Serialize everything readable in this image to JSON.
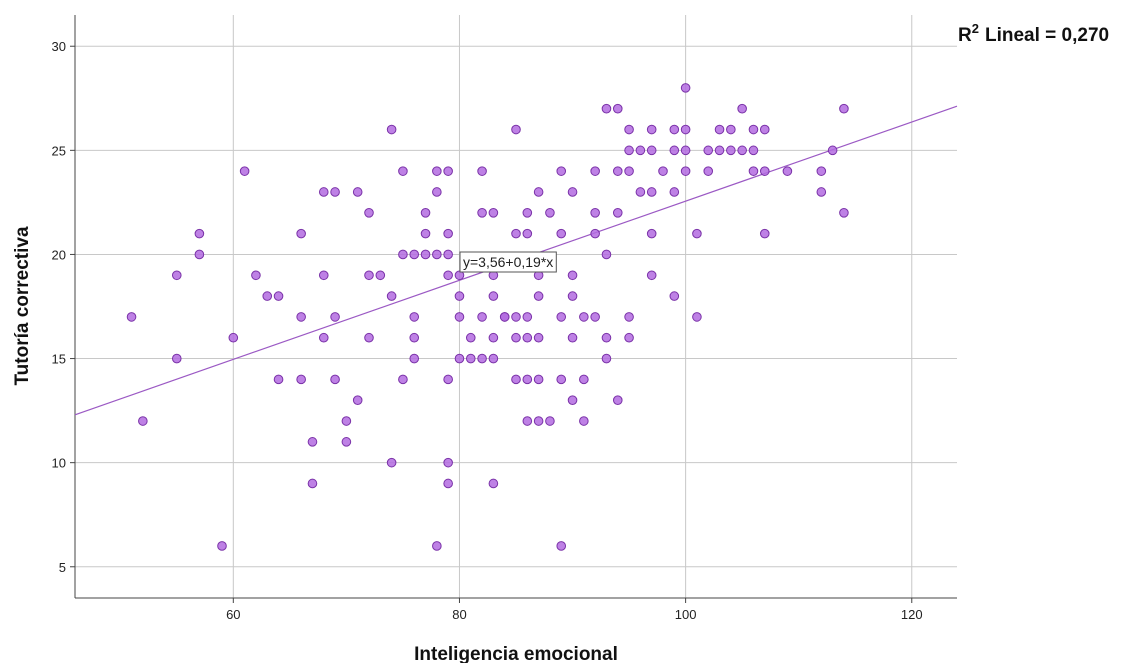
{
  "chart_data": {
    "type": "scatter",
    "title": "",
    "xlabel": "Inteligencia emocional",
    "ylabel": "Tutoría correctiva",
    "xlim": [
      46,
      124
    ],
    "ylim": [
      3.5,
      31.5
    ],
    "x_ticks": [
      60,
      80,
      100,
      120
    ],
    "y_ticks": [
      5,
      10,
      15,
      20,
      25,
      30
    ],
    "grid": true,
    "point_color": "#b36be0",
    "point_edge_color": "#7a32a8",
    "fit_line": {
      "intercept": 3.56,
      "slope": 0.19,
      "color": "#9b59c4",
      "equation_label": "y=3,56+0,19*x",
      "r2_label_prefix": "R",
      "r2_label_sup": "2",
      "r2_label_suffix": "Lineal = 0,270"
    },
    "points": [
      [
        51,
        17
      ],
      [
        52,
        12
      ],
      [
        55,
        19
      ],
      [
        55,
        15
      ],
      [
        57,
        21
      ],
      [
        57,
        20
      ],
      [
        59,
        6
      ],
      [
        60,
        16
      ],
      [
        61,
        24
      ],
      [
        62,
        19
      ],
      [
        63,
        18
      ],
      [
        64,
        18
      ],
      [
        64,
        14
      ],
      [
        66,
        21
      ],
      [
        66,
        17
      ],
      [
        66,
        14
      ],
      [
        67,
        11
      ],
      [
        67,
        9
      ],
      [
        68,
        23
      ],
      [
        68,
        19
      ],
      [
        68,
        16
      ],
      [
        69,
        23
      ],
      [
        69,
        17
      ],
      [
        69,
        14
      ],
      [
        70,
        12
      ],
      [
        70,
        11
      ],
      [
        71,
        23
      ],
      [
        71,
        13
      ],
      [
        72,
        22
      ],
      [
        72,
        19
      ],
      [
        72,
        16
      ],
      [
        73,
        19
      ],
      [
        74,
        26
      ],
      [
        74,
        18
      ],
      [
        74,
        10
      ],
      [
        75,
        24
      ],
      [
        75,
        20
      ],
      [
        75,
        14
      ],
      [
        76,
        20
      ],
      [
        76,
        17
      ],
      [
        76,
        16
      ],
      [
        76,
        15
      ],
      [
        77,
        22
      ],
      [
        77,
        21
      ],
      [
        77,
        20
      ],
      [
        78,
        24
      ],
      [
        78,
        23
      ],
      [
        78,
        20
      ],
      [
        78,
        6
      ],
      [
        79,
        24
      ],
      [
        79,
        21
      ],
      [
        79,
        20
      ],
      [
        79,
        19
      ],
      [
        79,
        14
      ],
      [
        79,
        10
      ],
      [
        79,
        9
      ],
      [
        80,
        19
      ],
      [
        80,
        18
      ],
      [
        80,
        17
      ],
      [
        80,
        15
      ],
      [
        81,
        15
      ],
      [
        81,
        16
      ],
      [
        82,
        24
      ],
      [
        82,
        22
      ],
      [
        82,
        17
      ],
      [
        82,
        15
      ],
      [
        83,
        22
      ],
      [
        83,
        19
      ],
      [
        83,
        18
      ],
      [
        83,
        16
      ],
      [
        83,
        15
      ],
      [
        83,
        9
      ],
      [
        84,
        17
      ],
      [
        84,
        17
      ],
      [
        85,
        26
      ],
      [
        85,
        21
      ],
      [
        85,
        17
      ],
      [
        85,
        16
      ],
      [
        85,
        14
      ],
      [
        86,
        22
      ],
      [
        86,
        21
      ],
      [
        86,
        17
      ],
      [
        86,
        16
      ],
      [
        86,
        14
      ],
      [
        86,
        12
      ],
      [
        87,
        23
      ],
      [
        87,
        19
      ],
      [
        87,
        18
      ],
      [
        87,
        16
      ],
      [
        87,
        14
      ],
      [
        87,
        12
      ],
      [
        88,
        22
      ],
      [
        88,
        12
      ],
      [
        89,
        24
      ],
      [
        89,
        21
      ],
      [
        89,
        17
      ],
      [
        89,
        14
      ],
      [
        89,
        6
      ],
      [
        90,
        23
      ],
      [
        90,
        19
      ],
      [
        90,
        18
      ],
      [
        90,
        16
      ],
      [
        90,
        13
      ],
      [
        91,
        17
      ],
      [
        91,
        14
      ],
      [
        91,
        12
      ],
      [
        92,
        24
      ],
      [
        92,
        22
      ],
      [
        92,
        21
      ],
      [
        92,
        17
      ],
      [
        93,
        27
      ],
      [
        93,
        20
      ],
      [
        93,
        16
      ],
      [
        93,
        15
      ],
      [
        94,
        27
      ],
      [
        94,
        24
      ],
      [
        94,
        22
      ],
      [
        94,
        13
      ],
      [
        95,
        26
      ],
      [
        95,
        25
      ],
      [
        95,
        24
      ],
      [
        95,
        17
      ],
      [
        95,
        16
      ],
      [
        96,
        25
      ],
      [
        96,
        23
      ],
      [
        97,
        26
      ],
      [
        97,
        25
      ],
      [
        97,
        23
      ],
      [
        97,
        21
      ],
      [
        97,
        19
      ],
      [
        98,
        24
      ],
      [
        99,
        26
      ],
      [
        99,
        25
      ],
      [
        99,
        23
      ],
      [
        99,
        18
      ],
      [
        100,
        28
      ],
      [
        100,
        26
      ],
      [
        100,
        25
      ],
      [
        100,
        24
      ],
      [
        101,
        21
      ],
      [
        101,
        17
      ],
      [
        102,
        25
      ],
      [
        102,
        24
      ],
      [
        103,
        26
      ],
      [
        103,
        25
      ],
      [
        104,
        26
      ],
      [
        104,
        25
      ],
      [
        105,
        27
      ],
      [
        105,
        25
      ],
      [
        106,
        26
      ],
      [
        106,
        25
      ],
      [
        106,
        24
      ],
      [
        107,
        26
      ],
      [
        107,
        24
      ],
      [
        107,
        21
      ],
      [
        109,
        24
      ],
      [
        112,
        24
      ],
      [
        112,
        23
      ],
      [
        113,
        25
      ],
      [
        114,
        27
      ],
      [
        114,
        22
      ]
    ]
  }
}
